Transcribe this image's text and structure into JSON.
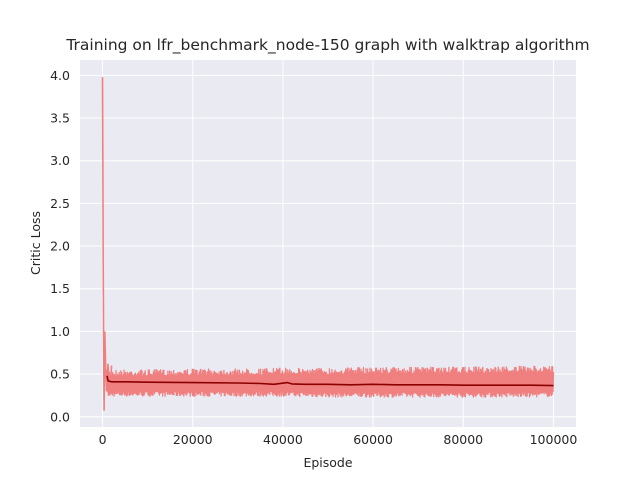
{
  "chart_data": {
    "type": "line",
    "title": "Training on lfr_benchmark_node-150 graph with walktrap algorithm",
    "xlabel": "Episode",
    "ylabel": "Critic Loss",
    "xlim": [
      -5000,
      105000
    ],
    "ylim": [
      -0.12,
      4.18
    ],
    "xticks": [
      0,
      20000,
      40000,
      60000,
      80000,
      100000
    ],
    "xtick_labels": [
      "0",
      "20000",
      "40000",
      "60000",
      "80000",
      "100000"
    ],
    "yticks": [
      0.0,
      0.5,
      1.0,
      1.5,
      2.0,
      2.5,
      3.0,
      3.5,
      4.0
    ],
    "ytick_labels": [
      "0.0",
      "0.5",
      "1.0",
      "1.5",
      "2.0",
      "2.5",
      "3.0",
      "3.5",
      "4.0"
    ],
    "grid": true,
    "background": "#eaeaf2",
    "series": [
      {
        "name": "",
        "role": "raw",
        "color": "#f08080",
        "x": [
          0,
          80,
          150,
          250,
          350,
          500,
          700,
          900,
          1200,
          1600,
          2000,
          3000,
          5000,
          7500,
          10000,
          15000,
          20000,
          25000,
          30000,
          35000,
          40000,
          45000,
          50000,
          55000,
          60000,
          65000,
          70000,
          75000,
          80000,
          85000,
          90000,
          95000,
          100000
        ],
        "y": [
          3.98,
          2.85,
          1.8,
          0.65,
          0.07,
          1.0,
          0.55,
          0.3,
          0.62,
          0.25,
          0.6,
          0.22,
          0.55,
          0.24,
          0.54,
          0.2,
          0.55,
          0.25,
          0.58,
          0.24,
          0.57,
          0.23,
          0.58,
          0.22,
          0.58,
          0.23,
          0.6,
          0.22,
          0.6,
          0.23,
          0.6,
          0.24,
          0.55
        ],
        "band_upper": [
          0.55,
          0.55,
          0.56,
          0.56,
          0.57,
          0.57,
          0.58,
          0.58,
          0.58,
          0.58,
          0.59,
          0.59,
          0.59
        ],
        "band_lower": [
          0.24,
          0.24,
          0.24,
          0.24,
          0.24,
          0.23,
          0.23,
          0.23,
          0.23,
          0.23,
          0.23,
          0.23,
          0.24
        ],
        "band_x": [
          1000,
          10000,
          20000,
          30000,
          40000,
          50000,
          60000,
          65000,
          70000,
          80000,
          90000,
          95000,
          100000
        ]
      },
      {
        "name": "",
        "role": "smoothed",
        "color": "#8b0000",
        "x": [
          1000,
          1200,
          2000,
          5000,
          10000,
          20000,
          30000,
          35000,
          38000,
          41000,
          42000,
          45000,
          50000,
          55000,
          60000,
          65000,
          70000,
          75000,
          80000,
          85000,
          90000,
          95000,
          100000
        ],
        "y": [
          0.48,
          0.42,
          0.41,
          0.41,
          0.405,
          0.4,
          0.395,
          0.39,
          0.38,
          0.4,
          0.385,
          0.38,
          0.38,
          0.375,
          0.38,
          0.375,
          0.375,
          0.375,
          0.37,
          0.37,
          0.37,
          0.37,
          0.365
        ]
      }
    ]
  }
}
